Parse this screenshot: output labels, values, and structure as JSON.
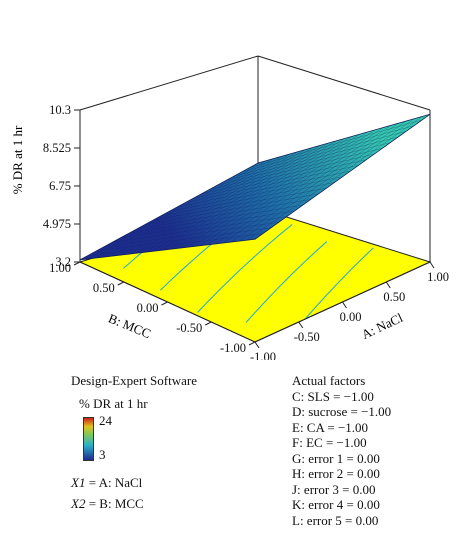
{
  "chart_data": {
    "type": "surface",
    "zlabel": "% DR at 1 hr",
    "xlabel": "A: NaCl",
    "ylabel": "B: MCC",
    "zlim": [
      3.2,
      10.3
    ],
    "z_ticks": [
      "3.2",
      "4.975",
      "6.75",
      "8.525",
      "10.3"
    ],
    "x_ticks": [
      "-1.00",
      "-0.50",
      "0.00",
      "0.50",
      "1.00"
    ],
    "y_ticks": [
      "-1.00",
      "-0.50",
      "0.00",
      "0.50",
      "1.00"
    ],
    "corners": [
      {
        "nacl": -1,
        "mcc": 1,
        "dr": 3.3
      },
      {
        "nacl": 1,
        "mcc": 1,
        "dr": 5.3
      },
      {
        "nacl": -1,
        "mcc": -1,
        "dr": 8.0
      },
      {
        "nacl": 1,
        "mcc": -1,
        "dr": 10.1
      }
    ],
    "contour_levels": [
      4.2,
      5.3,
      6.4,
      7.5,
      8.6
    ],
    "colors": {
      "floor": "#ffff00",
      "contour": "#2bb0c8",
      "surface_low": "#1d2c8e",
      "surface_high": "#36c9b0"
    }
  },
  "legend": {
    "software": "Design-Expert Software",
    "response": "% DR at 1 hr",
    "scale_high": "24",
    "scale_low": "3",
    "x1_var": "X1",
    "x1_eq": " = A: NaCl",
    "x2_var": "X2",
    "x2_eq": " = B: MCC"
  },
  "factors": {
    "title": "Actual factors",
    "items": [
      "C: SLS = −1.00",
      "D: sucrose = −1.00",
      "E: CA = −1.00",
      "F: EC = −1.00",
      "G: error 1 = 0.00",
      "H: error 2 = 0.00",
      "J: error 3 = 0.00",
      "K: error 4 = 0.00",
      "L: error 5 = 0.00"
    ]
  }
}
